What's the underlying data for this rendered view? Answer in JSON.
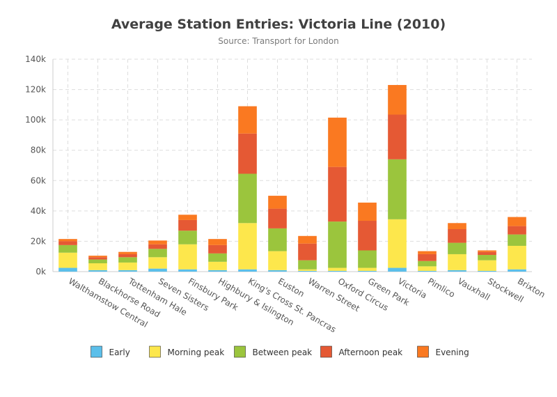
{
  "chart_data": {
    "type": "bar",
    "stacked": true,
    "title": "Average Station Entries: Victoria Line (2010)",
    "subtitle": "Source: Transport for London",
    "ylim": [
      0,
      140000
    ],
    "y_ticks": [
      0,
      20000,
      40000,
      60000,
      80000,
      100000,
      120000,
      140000
    ],
    "y_tick_labels": [
      "0k",
      "20k",
      "40k",
      "60k",
      "80k",
      "100k",
      "120k",
      "140k"
    ],
    "grid": true,
    "legend_position": "bottom",
    "categories": [
      "Walthamstow Central",
      "Blackhorse Road",
      "Tottenham Hale",
      "Seven Sisters",
      "Finsbury Park",
      "Highbury & Islington",
      "King's Cross St. Pancras",
      "Euston",
      "Warren Street",
      "Oxford Circus",
      "Green Park",
      "Victoria",
      "Pimlico",
      "Vauxhall",
      "Stockwell",
      "Brixton"
    ],
    "series": [
      {
        "name": "Early",
        "color": "#5bbfea",
        "values": [
          2500,
          1000,
          1000,
          2000,
          1500,
          1000,
          1500,
          1000,
          500,
          500,
          500,
          2500,
          500,
          1000,
          500,
          1500
        ]
      },
      {
        "name": "Morning peak",
        "color": "#fde74c",
        "values": [
          10000,
          4500,
          5000,
          7500,
          16500,
          5500,
          30500,
          12500,
          1000,
          2000,
          2000,
          32000,
          3000,
          10500,
          7000,
          15500
        ]
      },
      {
        "name": "Between peak",
        "color": "#9bc53d",
        "values": [
          5000,
          2500,
          3500,
          5500,
          9000,
          5500,
          32500,
          15000,
          6000,
          30500,
          11500,
          39500,
          3500,
          7500,
          3500,
          7500
        ]
      },
      {
        "name": "Afternoon peak",
        "color": "#e55934",
        "values": [
          2500,
          1500,
          2000,
          3000,
          7000,
          5500,
          26500,
          13000,
          11000,
          36000,
          19500,
          29500,
          4500,
          9000,
          2000,
          5500
        ]
      },
      {
        "name": "Evening",
        "color": "#fa7921",
        "values": [
          1500,
          1000,
          1500,
          2500,
          3500,
          4000,
          18000,
          8500,
          5000,
          32500,
          12000,
          19500,
          2000,
          4000,
          1000,
          6000
        ]
      }
    ]
  }
}
